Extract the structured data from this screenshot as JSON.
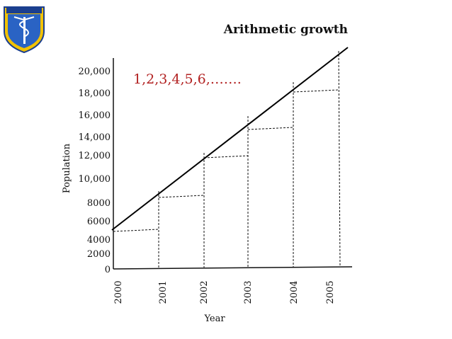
{
  "chart_data": {
    "type": "line",
    "title": "Arithmetic growth",
    "xlabel": "Year",
    "ylabel": "Population",
    "annotation": "1,2,3,4,5,6,…….",
    "y_ticks": [
      "0",
      "2000",
      "4000",
      "6000",
      "8000",
      "10,000",
      "12,000",
      "14,000",
      "16,000",
      "18,000",
      "20,000"
    ],
    "x_ticks": [
      "2000",
      "2001",
      "2002",
      "2003",
      "2004",
      "2005"
    ]
  }
}
